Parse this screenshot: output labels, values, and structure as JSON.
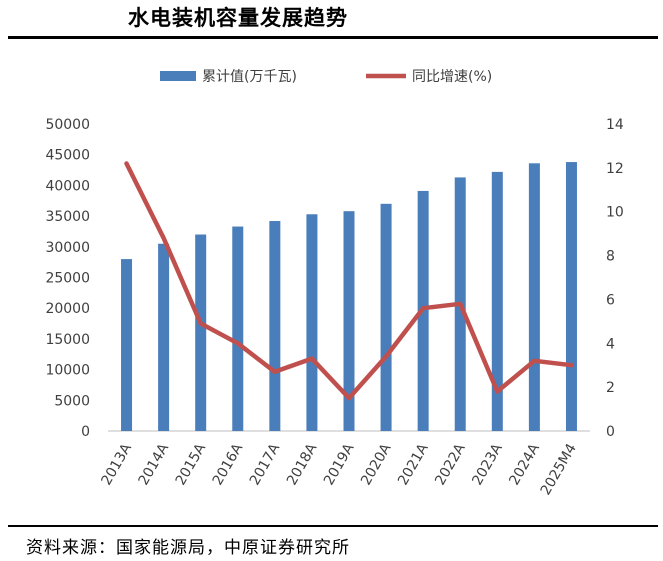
{
  "header": {
    "title": "水电装机容量发展趋势"
  },
  "footer": {
    "source": "资料来源：国家能源局，中原证券研究所"
  },
  "chart_data": {
    "type": "bar",
    "categories": [
      "2013A",
      "2014A",
      "2015A",
      "2016A",
      "2017A",
      "2018A",
      "2019A",
      "2020A",
      "2021A",
      "2022A",
      "2023A",
      "2024A",
      "2025M4"
    ],
    "series": [
      {
        "name": "累计值(万千瓦)",
        "type": "bar",
        "axis": "left",
        "color": "#4a7ebb",
        "values": [
          28000,
          30500,
          32000,
          33300,
          34200,
          35300,
          35800,
          37000,
          39100,
          41300,
          42200,
          43600,
          43800
        ]
      },
      {
        "name": "同比增速(%)",
        "type": "line",
        "axis": "right",
        "color": "#c0504d",
        "values": [
          12.2,
          8.8,
          4.9,
          4.0,
          2.7,
          3.3,
          1.5,
          3.4,
          5.6,
          5.8,
          1.8,
          3.2,
          3.0
        ]
      }
    ],
    "y_left": {
      "ylim": [
        0,
        50000
      ],
      "ticks": [
        "0",
        "5000",
        "10000",
        "15000",
        "20000",
        "25000",
        "30000",
        "35000",
        "40000",
        "45000",
        "50000"
      ]
    },
    "y_right": {
      "ylim": [
        0,
        14
      ],
      "ticks": [
        "0",
        "2",
        "4",
        "6",
        "8",
        "10",
        "12",
        "14"
      ]
    },
    "legend": "top-center",
    "grid": false
  }
}
